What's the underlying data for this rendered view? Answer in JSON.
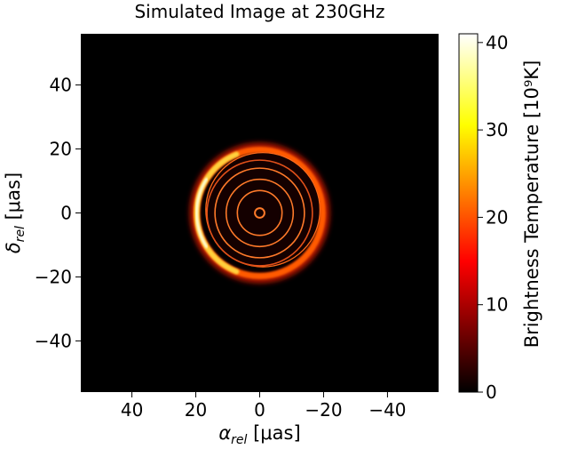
{
  "chart_data": {
    "type": "heatmap",
    "title": "Simulated Image at 230GHz",
    "xlabel": {
      "symbol": "α",
      "sub": "rel",
      "unit": " [μas]"
    },
    "ylabel": {
      "symbol": "δ",
      "sub": "rel",
      "unit": " [μas]"
    },
    "xlim": [
      56,
      -56
    ],
    "ylim": [
      -56,
      56
    ],
    "x_ticks": [
      {
        "value": 40,
        "label": "40"
      },
      {
        "value": 20,
        "label": "20"
      },
      {
        "value": 0,
        "label": "0"
      },
      {
        "value": -20,
        "label": "−20"
      },
      {
        "value": -40,
        "label": "−40"
      }
    ],
    "y_ticks": [
      {
        "value": 40,
        "label": "40"
      },
      {
        "value": 20,
        "label": "20"
      },
      {
        "value": 0,
        "label": "0"
      },
      {
        "value": -20,
        "label": "−20"
      },
      {
        "value": -40,
        "label": "−40"
      }
    ],
    "colormap": "hot",
    "colorbar": {
      "label": "Brightness Temperature [10⁹K]",
      "range": [
        0,
        41
      ],
      "ticks": [
        {
          "value": 0,
          "label": "0"
        },
        {
          "value": 10,
          "label": "10"
        },
        {
          "value": 20,
          "label": "20"
        },
        {
          "value": 30,
          "label": "30"
        },
        {
          "value": 40,
          "label": "40"
        }
      ]
    },
    "features": {
      "photon_ring_radius_uas": 20,
      "photon_ring_center_uas": [
        0,
        0
      ],
      "peak_brightness_side": "left",
      "shadow_disk_radius_uas": 18,
      "shadow_disk_center_uas": [
        -1,
        1
      ],
      "inner_ring_radii_uas": [
        1.5,
        7,
        10.5,
        14,
        16.5
      ],
      "inner_ring_brightness": 14
    }
  }
}
